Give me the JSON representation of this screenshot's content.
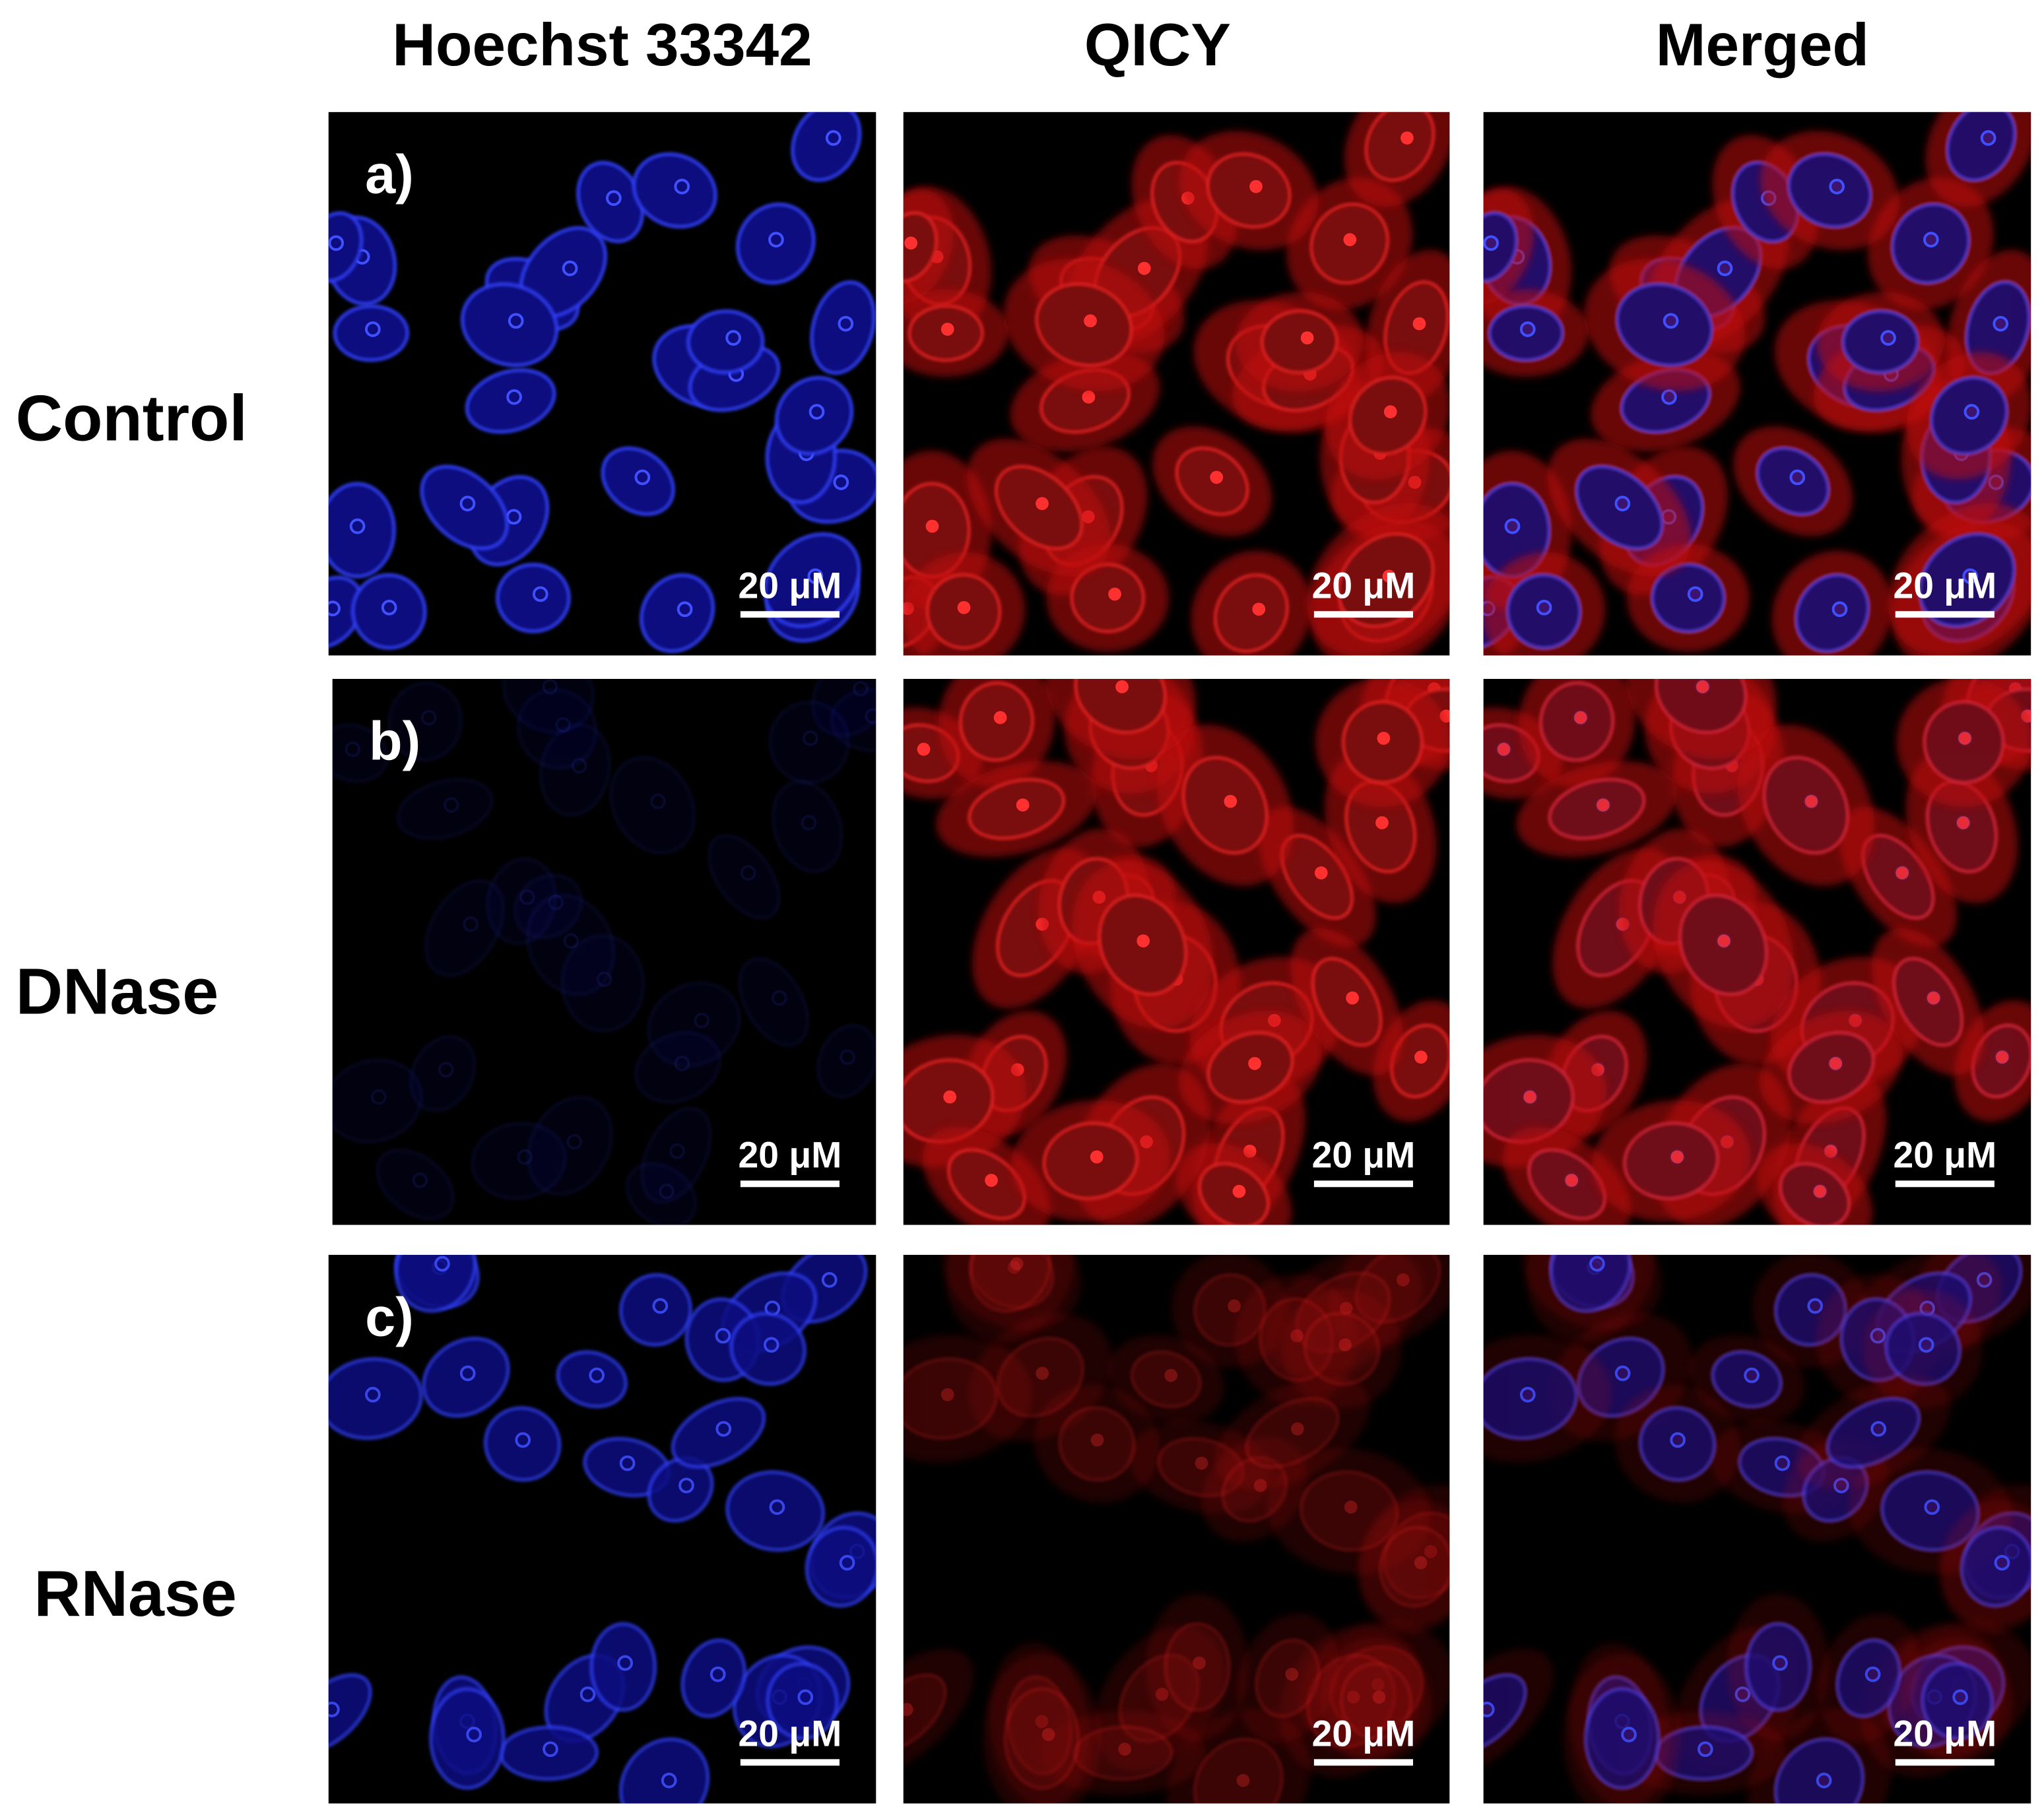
{
  "columns": [
    "Hoechst 33342",
    "QICY",
    "Merged"
  ],
  "rows": [
    {
      "label": "Control",
      "panel": "a)",
      "scale_bars": [
        "20 μM",
        "20 μM",
        "20 μM"
      ]
    },
    {
      "label": "DNase",
      "panel": "b)",
      "scale_bars": [
        "20 μM",
        "20 μM",
        "20 μM"
      ]
    },
    {
      "label": "RNase",
      "panel": "c)",
      "scale_bars": [
        "20 μM",
        "20 μM",
        "20 μM"
      ]
    }
  ]
}
